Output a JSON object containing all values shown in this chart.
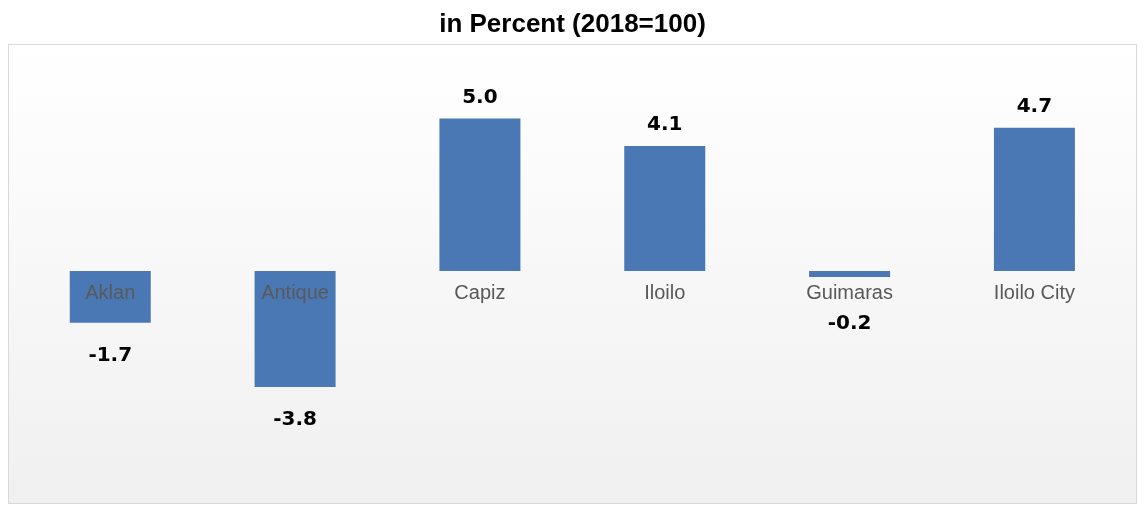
{
  "chart_data": {
    "type": "bar",
    "title": "in Percent (2018=100)",
    "categories": [
      "Aklan",
      "Antique",
      "Capiz",
      "Iloilo",
      "Guimaras",
      "Iloilo City"
    ],
    "values": [
      -1.7,
      -3.8,
      5.0,
      4.1,
      -0.2,
      4.7
    ],
    "value_labels": [
      "-1.7",
      "-3.8",
      "5.0",
      "4.1",
      "-0.2",
      "4.7"
    ],
    "color": "#4a78b5"
  }
}
